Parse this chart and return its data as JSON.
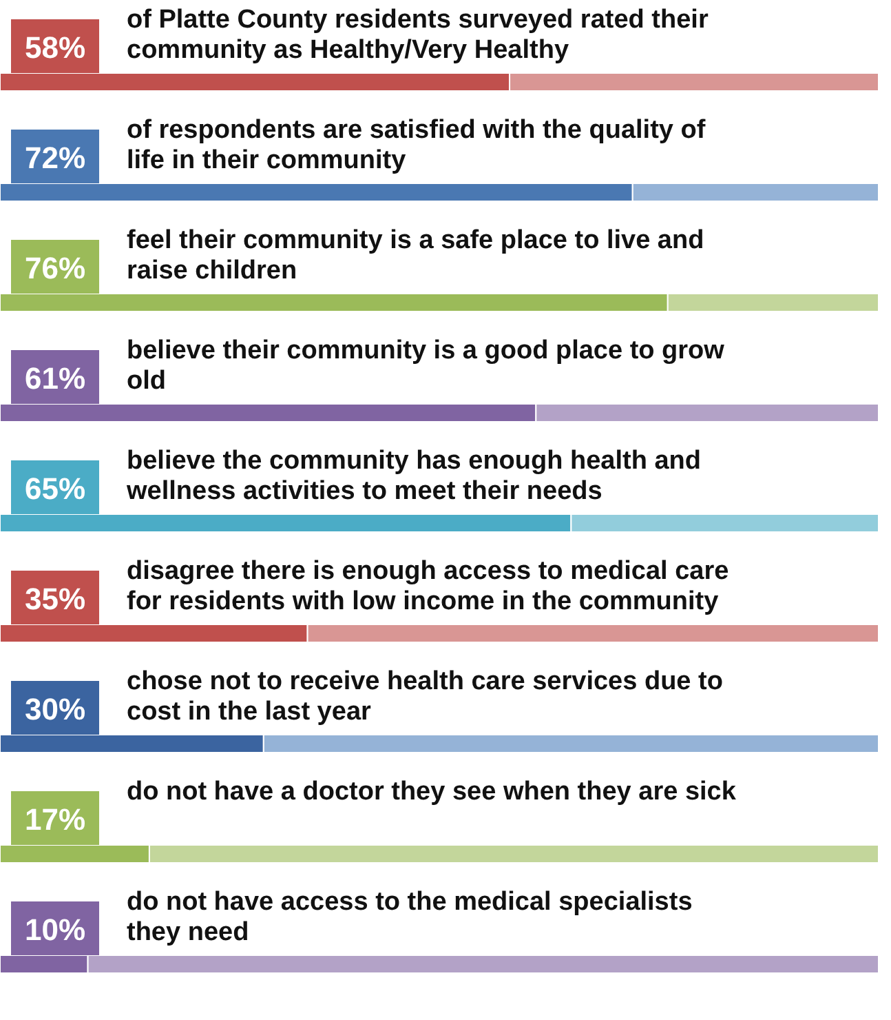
{
  "chart_data": {
    "type": "bar",
    "orientation": "horizontal",
    "stacked": true,
    "xlim": [
      0,
      100
    ],
    "tick_labels": false,
    "categories": [
      "of Platte County residents surveyed rated their community as Healthy/Very Healthy",
      "of respondents are satisfied with the quality of life in their community",
      "feel their community is a safe place to live and raise children",
      "believe their community is a good place to grow old",
      "believe the community has enough health and wellness activities to meet their needs",
      "disagree there is enough access to medical care for residents with low income in the community",
      "chose not to receive health care services due to cost in the last year",
      "do not have a doctor they see when they are sick",
      "do not have access to the medical specialists they need"
    ],
    "series": [
      {
        "colors": [
          "#c0504d",
          "#4a78b2",
          "#9bbb59",
          "#8064a2",
          "#4bacc6",
          "#c0504d",
          "#3b64a0",
          "#9bbb59",
          "#8064a2"
        ],
        "values": [
          58,
          72,
          76,
          61,
          65,
          35,
          30,
          17,
          10
        ],
        "value_labels": [
          "58%",
          "72%",
          "76%",
          "61%",
          "65%",
          "35%",
          "30%",
          "17%",
          "10%"
        ]
      },
      {
        "colors": [
          "#d99694",
          "#95b3d7",
          "#c3d69b",
          "#b3a2c7",
          "#92cddc",
          "#d99694",
          "#95b3d7",
          "#c3d69b",
          "#b3a2c7"
        ],
        "values": [
          42,
          28,
          24,
          39,
          35,
          65,
          70,
          83,
          90
        ]
      }
    ]
  }
}
